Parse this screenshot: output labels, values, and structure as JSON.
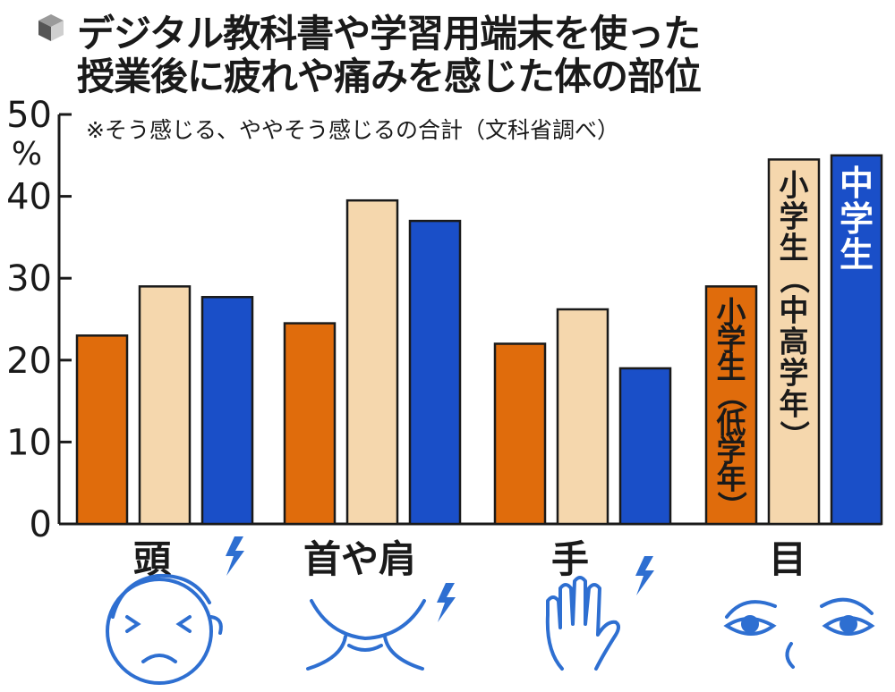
{
  "title_lines": [
    "デジタル教科書や学習用端末を使った",
    "授業後に疲れや痛みを感じた体の部位"
  ],
  "subtitle": "※そう感じる、ややそう感じるの合計（文科省調べ）",
  "unit_label": "%",
  "colors": {
    "lower_elementary": "#e06c0c",
    "upper_elementary": "#f5d7ad",
    "junior_high": "#1a4fc8",
    "axis": "#1a1a1a",
    "icon": "#2e6fd1"
  },
  "chart_data": {
    "type": "bar",
    "categories": [
      "頭",
      "首や肩",
      "手",
      "目"
    ],
    "series": [
      {
        "name": "小学生（低学年）",
        "values": [
          23,
          24.5,
          22,
          29
        ]
      },
      {
        "name": "小学生（中高学年）",
        "values": [
          29,
          39.5,
          26.2,
          44.5
        ]
      },
      {
        "name": "中学生",
        "values": [
          27.7,
          37,
          19,
          45
        ]
      }
    ],
    "ylim": [
      0,
      50
    ],
    "yticks": [
      0,
      10,
      20,
      30,
      40,
      50
    ],
    "grid": false,
    "legend": "inside bars of 目 group"
  },
  "icons": [
    "headache-face-icon",
    "neck-shoulder-pain-icon",
    "hand-pain-icon",
    "eyes-icon"
  ]
}
